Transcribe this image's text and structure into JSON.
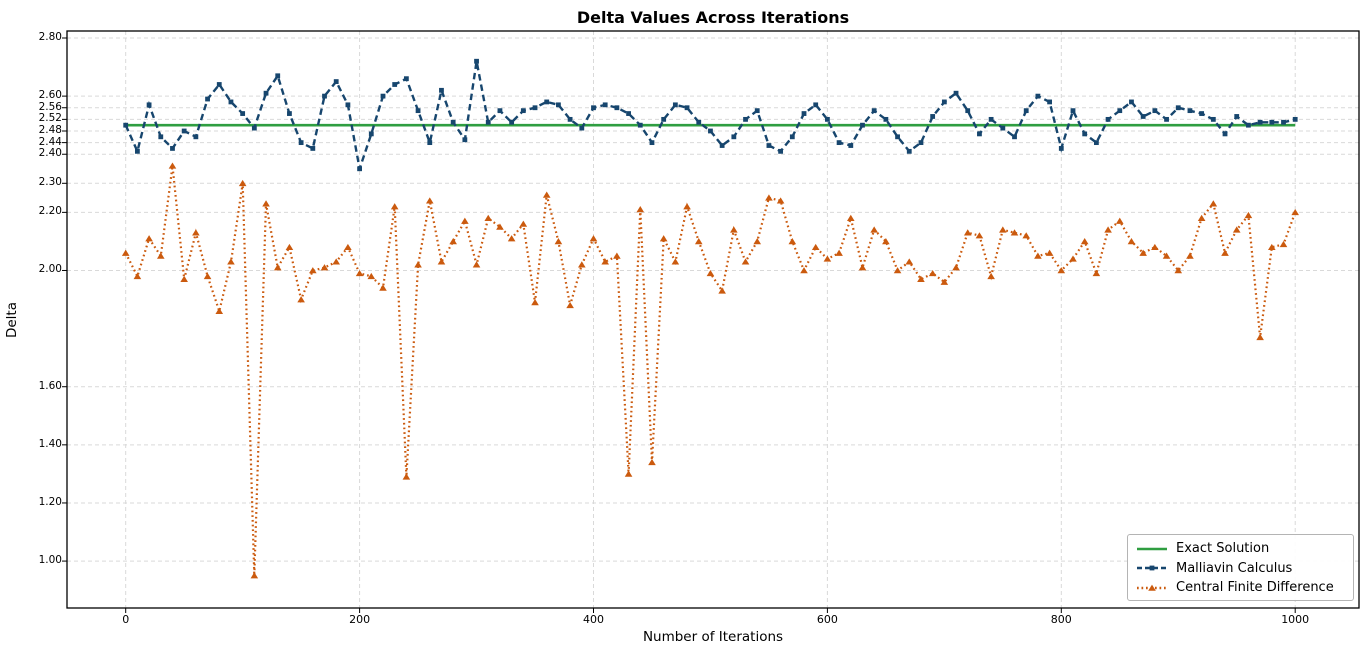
{
  "title": "Delta Values Across Iterations",
  "x_axis": {
    "label": "Number of Iterations",
    "ticks": [
      "0",
      "200",
      "400",
      "600",
      "800",
      "1000"
    ]
  },
  "y_axis": {
    "label": "Delta",
    "ticks": [
      "2.80",
      "2.60",
      "2.56",
      "2.52",
      "2.48",
      "2.44",
      "2.40",
      "2.30",
      "2.20",
      "2.00",
      "1.60",
      "1.40",
      "1.20",
      "1.00"
    ]
  },
  "colors": {
    "exact": "#2f9e41",
    "malliavin": "#17466e",
    "cfd": "#cb5a0e",
    "grid": "#d9d9d9",
    "spine": "#000000",
    "legend_border": "#b4b4b4"
  },
  "chart_data": {
    "type": "line",
    "title": "Delta Values Across Iterations",
    "xlabel": "Number of Iterations",
    "ylabel": "Delta",
    "xlim": [
      -50,
      1050
    ],
    "ylim": [
      0.84,
      2.82
    ],
    "grid": true,
    "legend_position": "lower right",
    "x_tick_values": [
      0,
      200,
      400,
      600,
      800,
      1000
    ],
    "y_tick_values": [
      2.8,
      2.6,
      2.56,
      2.52,
      2.48,
      2.44,
      2.4,
      2.3,
      2.2,
      2.0,
      1.6,
      1.4,
      1.2,
      1.0
    ],
    "x": [
      0,
      10,
      20,
      30,
      40,
      50,
      60,
      70,
      80,
      90,
      100,
      110,
      120,
      130,
      140,
      150,
      160,
      170,
      180,
      190,
      200,
      210,
      220,
      230,
      240,
      250,
      260,
      270,
      280,
      290,
      300,
      310,
      320,
      330,
      340,
      350,
      360,
      370,
      380,
      390,
      400,
      410,
      420,
      430,
      440,
      450,
      460,
      470,
      480,
      490,
      500,
      510,
      520,
      530,
      540,
      550,
      560,
      570,
      580,
      590,
      600,
      610,
      620,
      630,
      640,
      650,
      660,
      670,
      680,
      690,
      700,
      710,
      720,
      730,
      740,
      750,
      760,
      770,
      780,
      790,
      800,
      810,
      820,
      830,
      840,
      850,
      860,
      870,
      880,
      890,
      900,
      910,
      920,
      930,
      940,
      950,
      960,
      970,
      980,
      990,
      1000
    ],
    "series": [
      {
        "name": "Exact Solution",
        "style": "solid",
        "marker": "none",
        "color": "#2f9e41",
        "constant_value": 2.5
      },
      {
        "name": "Malliavin Calculus",
        "style": "dashed",
        "marker": "square",
        "color": "#17466e",
        "values": [
          2.5,
          2.41,
          2.57,
          2.46,
          2.42,
          2.48,
          2.46,
          2.59,
          2.64,
          2.58,
          2.54,
          2.49,
          2.61,
          2.67,
          2.54,
          2.44,
          2.42,
          2.6,
          2.65,
          2.57,
          2.35,
          2.47,
          2.6,
          2.64,
          2.66,
          2.55,
          2.44,
          2.62,
          2.51,
          2.45,
          2.72,
          2.51,
          2.55,
          2.51,
          2.55,
          2.56,
          2.58,
          2.57,
          2.52,
          2.49,
          2.56,
          2.57,
          2.56,
          2.54,
          2.5,
          2.44,
          2.52,
          2.57,
          2.56,
          2.51,
          2.48,
          2.43,
          2.46,
          2.52,
          2.55,
          2.43,
          2.41,
          2.46,
          2.54,
          2.57,
          2.52,
          2.44,
          2.43,
          2.5,
          2.55,
          2.52,
          2.46,
          2.41,
          2.44,
          2.53,
          2.58,
          2.61,
          2.55,
          2.47,
          2.52,
          2.49,
          2.46,
          2.55,
          2.6,
          2.58,
          2.42,
          2.55,
          2.47,
          2.44,
          2.52,
          2.55,
          2.58,
          2.53,
          2.55,
          2.52,
          2.56,
          2.55,
          2.54,
          2.52,
          2.47,
          2.53,
          2.5,
          2.51,
          2.51,
          2.51,
          2.52
        ]
      },
      {
        "name": "Central Finite Difference",
        "style": "dotted",
        "marker": "triangle",
        "color": "#cb5a0e",
        "values": [
          2.06,
          1.98,
          2.11,
          2.05,
          2.36,
          1.97,
          2.13,
          1.98,
          1.86,
          2.03,
          2.3,
          0.95,
          2.23,
          2.01,
          2.08,
          1.9,
          2.0,
          2.01,
          2.03,
          2.08,
          1.99,
          1.98,
          1.94,
          2.22,
          1.29,
          2.02,
          2.24,
          2.03,
          2.1,
          2.17,
          2.02,
          2.18,
          2.15,
          2.11,
          2.16,
          1.89,
          2.26,
          2.1,
          1.88,
          2.02,
          2.11,
          2.03,
          2.05,
          1.3,
          2.21,
          1.34,
          2.11,
          2.03,
          2.22,
          2.1,
          1.99,
          1.93,
          2.14,
          2.03,
          2.1,
          2.25,
          2.24,
          2.1,
          2.0,
          2.08,
          2.04,
          2.06,
          2.18,
          2.01,
          2.14,
          2.1,
          2.0,
          2.03,
          1.97,
          1.99,
          1.96,
          2.01,
          2.13,
          2.12,
          1.98,
          2.14,
          2.13,
          2.12,
          2.05,
          2.06,
          2.0,
          2.04,
          2.1,
          1.99,
          2.14,
          2.17,
          2.1,
          2.06,
          2.08,
          2.05,
          2.0,
          2.05,
          2.18,
          2.23,
          2.06,
          2.14,
          2.19,
          1.77,
          2.08,
          2.09,
          2.2
        ]
      }
    ]
  }
}
